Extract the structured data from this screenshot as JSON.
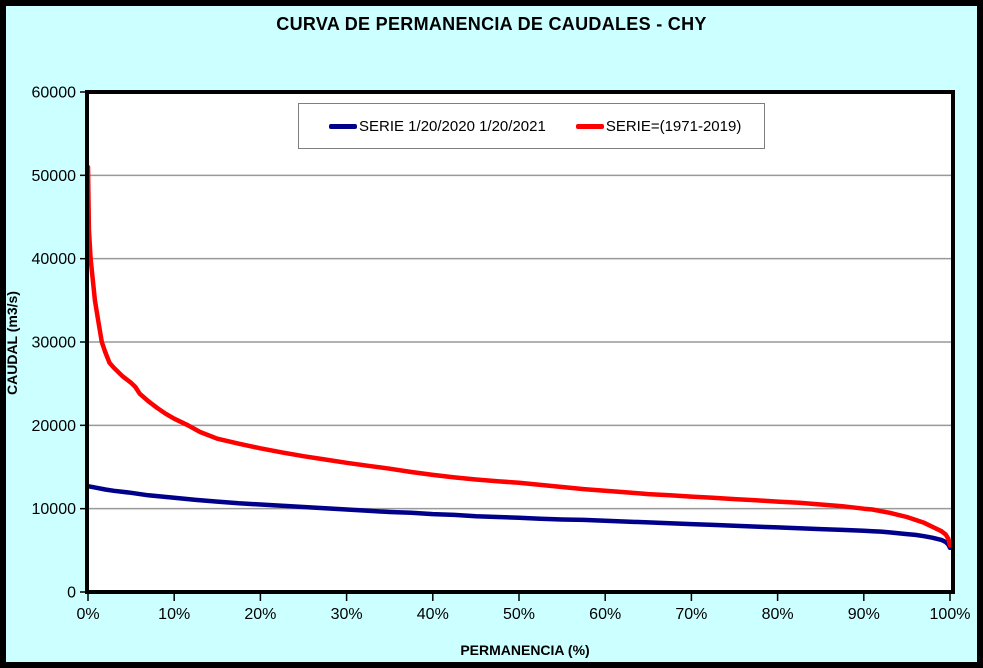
{
  "chart_data": {
    "type": "line",
    "title": "CURVA DE PERMANENCIA DE CAUDALES - CHY",
    "xlabel": "PERMANENCIA (%)",
    "ylabel": "CAUDAL (m3/s)",
    "xlim": [
      0,
      100
    ],
    "ylim": [
      0,
      60000
    ],
    "x_tick_labels": [
      "0%",
      "10%",
      "20%",
      "30%",
      "40%",
      "50%",
      "60%",
      "70%",
      "80%",
      "90%",
      "100%"
    ],
    "y_ticks": [
      0,
      10000,
      20000,
      30000,
      40000,
      50000,
      60000
    ],
    "grid": "horizontal-only",
    "legend_position": "top-center-inside",
    "colors": {
      "background": "#CCFFFF",
      "plot_background": "#FFFFFF",
      "plot_border": "#000000",
      "gridline": "#999999",
      "text": "#000000"
    },
    "series": [
      {
        "name": "SERIE 1/20/2020 1/20/2021",
        "color": "#00008B",
        "points": [
          [
            0,
            12700
          ],
          [
            1,
            12500
          ],
          [
            2,
            12300
          ],
          [
            3,
            12150
          ],
          [
            5,
            11900
          ],
          [
            7,
            11600
          ],
          [
            10,
            11300
          ],
          [
            12.5,
            11050
          ],
          [
            15,
            10850
          ],
          [
            17.5,
            10650
          ],
          [
            20,
            10500
          ],
          [
            22.5,
            10350
          ],
          [
            25,
            10200
          ],
          [
            27.5,
            10050
          ],
          [
            30,
            9900
          ],
          [
            32.5,
            9750
          ],
          [
            35,
            9600
          ],
          [
            37.5,
            9500
          ],
          [
            40,
            9350
          ],
          [
            42.5,
            9250
          ],
          [
            45,
            9100
          ],
          [
            47.5,
            9000
          ],
          [
            50,
            8900
          ],
          [
            52.5,
            8800
          ],
          [
            55,
            8700
          ],
          [
            57.5,
            8650
          ],
          [
            60,
            8550
          ],
          [
            62.5,
            8450
          ],
          [
            65,
            8350
          ],
          [
            67.5,
            8250
          ],
          [
            70,
            8150
          ],
          [
            72.5,
            8050
          ],
          [
            75,
            7950
          ],
          [
            77.5,
            7850
          ],
          [
            80,
            7750
          ],
          [
            82.5,
            7650
          ],
          [
            85,
            7550
          ],
          [
            87.5,
            7450
          ],
          [
            90,
            7350
          ],
          [
            91,
            7300
          ],
          [
            92,
            7250
          ],
          [
            93,
            7150
          ],
          [
            95,
            6950
          ],
          [
            96,
            6850
          ],
          [
            97,
            6700
          ],
          [
            98,
            6500
          ],
          [
            99,
            6250
          ],
          [
            99.5,
            6000
          ],
          [
            99.8,
            5700
          ],
          [
            100,
            5300
          ]
        ]
      },
      {
        "name": "SERIE=(1971-2019)",
        "color": "#FF0000",
        "points": [
          [
            0,
            51000
          ],
          [
            0.1,
            43500
          ],
          [
            0.3,
            40000
          ],
          [
            0.6,
            37000
          ],
          [
            0.8,
            35000
          ],
          [
            1.2,
            32500
          ],
          [
            1.6,
            30000
          ],
          [
            2,
            28800
          ],
          [
            2.5,
            27500
          ],
          [
            3,
            26900
          ],
          [
            4,
            25900
          ],
          [
            5,
            25100
          ],
          [
            5.5,
            24600
          ],
          [
            6,
            23800
          ],
          [
            7,
            22900
          ],
          [
            8,
            22100
          ],
          [
            9,
            21400
          ],
          [
            10,
            20800
          ],
          [
            11.6,
            20000
          ],
          [
            13,
            19200
          ],
          [
            15,
            18400
          ],
          [
            17.5,
            17800
          ],
          [
            20,
            17250
          ],
          [
            22.5,
            16750
          ],
          [
            25,
            16300
          ],
          [
            27.5,
            15900
          ],
          [
            30,
            15500
          ],
          [
            32.5,
            15150
          ],
          [
            35,
            14800
          ],
          [
            37.5,
            14400
          ],
          [
            40,
            14050
          ],
          [
            42.5,
            13750
          ],
          [
            45,
            13500
          ],
          [
            47.5,
            13300
          ],
          [
            50,
            13100
          ],
          [
            52.5,
            12850
          ],
          [
            55,
            12600
          ],
          [
            57.5,
            12350
          ],
          [
            60,
            12150
          ],
          [
            62.5,
            11950
          ],
          [
            65,
            11750
          ],
          [
            67.5,
            11600
          ],
          [
            70,
            11450
          ],
          [
            72.5,
            11300
          ],
          [
            75,
            11150
          ],
          [
            77.5,
            11000
          ],
          [
            80,
            10850
          ],
          [
            82.5,
            10700
          ],
          [
            85,
            10500
          ],
          [
            87.5,
            10300
          ],
          [
            90,
            10000
          ],
          [
            91,
            9900
          ],
          [
            92,
            9700
          ],
          [
            93,
            9500
          ],
          [
            94,
            9250
          ],
          [
            95,
            9000
          ],
          [
            96,
            8650
          ],
          [
            97,
            8300
          ],
          [
            98,
            7800
          ],
          [
            99,
            7300
          ],
          [
            99.5,
            6900
          ],
          [
            99.8,
            6400
          ],
          [
            100,
            5600
          ]
        ]
      }
    ]
  }
}
